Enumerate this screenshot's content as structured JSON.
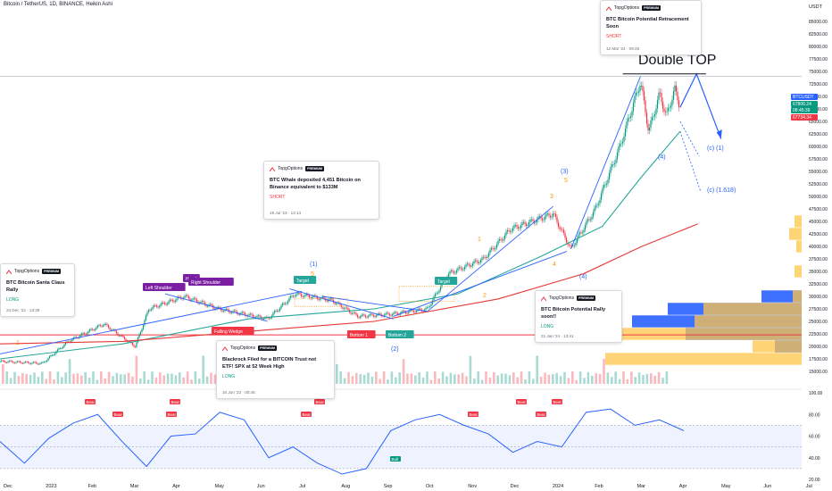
{
  "header": {
    "symbol_title": "Bitcoin / TetherUS, 1D, BINANCE, Heikin Ashi"
  },
  "price_axis": {
    "currency": "USDT",
    "labels": [
      "85000.00",
      "82500.00",
      "80000.00",
      "77500.00",
      "75000.00",
      "72500.00",
      "70000.00",
      "67500.00",
      "65000.00",
      "62500.00",
      "60000.00",
      "57500.00",
      "55000.00",
      "52500.00",
      "50000.00",
      "47500.00",
      "45000.00",
      "42500.00",
      "40000.00",
      "37500.00",
      "35000.00",
      "32500.00",
      "30000.00",
      "27500.00",
      "25000.00",
      "22500.00",
      "20000.00",
      "17500.00",
      "15000.00"
    ],
    "last_price_tags": [
      {
        "text": "BTCUSDT",
        "color": "#2962ff"
      },
      {
        "text": "67806.24",
        "color": "#089981"
      },
      {
        "text": "08:45:39",
        "color": "#089981"
      },
      {
        "text": "67734.34",
        "color": "#f23645"
      }
    ]
  },
  "rsi_axis": {
    "labels": [
      "100.00",
      "80.00",
      "60.00",
      "40.00",
      "20.00"
    ]
  },
  "time_axis": {
    "labels": [
      "Dec",
      "2023",
      "Feb",
      "Mar",
      "Apr",
      "May",
      "Jun",
      "Jul",
      "Aug",
      "Sep",
      "Oct",
      "Nov",
      "Dec",
      "2024",
      "Feb",
      "Mar",
      "Apr",
      "May",
      "Jun",
      "Jul"
    ]
  },
  "chart_data": {
    "type": "candlestick",
    "candle_type": "Heikin Ashi",
    "interval": "1D",
    "exchange": "BINANCE",
    "x_range": [
      "Dec 2022",
      "Jul 2024"
    ],
    "ylim": [
      12500,
      87500
    ],
    "close_path": [
      {
        "date": "2022-12-01",
        "close": 17000
      },
      {
        "date": "2023-01-01",
        "close": 16600
      },
      {
        "date": "2023-01-20",
        "close": 21000
      },
      {
        "date": "2023-02-15",
        "close": 24500
      },
      {
        "date": "2023-03-10",
        "close": 20000
      },
      {
        "date": "2023-03-20",
        "close": 27500
      },
      {
        "date": "2023-04-15",
        "close": 30000
      },
      {
        "date": "2023-05-10",
        "close": 27500
      },
      {
        "date": "2023-06-15",
        "close": 25500
      },
      {
        "date": "2023-07-05",
        "close": 30500
      },
      {
        "date": "2023-08-01",
        "close": 29200
      },
      {
        "date": "2023-08-20",
        "close": 26000
      },
      {
        "date": "2023-09-15",
        "close": 26500
      },
      {
        "date": "2023-10-10",
        "close": 27500
      },
      {
        "date": "2023-10-25",
        "close": 34500
      },
      {
        "date": "2023-11-20",
        "close": 37500
      },
      {
        "date": "2023-12-10",
        "close": 43500
      },
      {
        "date": "2024-01-10",
        "close": 46500
      },
      {
        "date": "2024-01-23",
        "close": 39500
      },
      {
        "date": "2024-02-10",
        "close": 47500
      },
      {
        "date": "2024-02-28",
        "close": 60000
      },
      {
        "date": "2024-03-14",
        "close": 73000
      },
      {
        "date": "2024-03-20",
        "close": 63000
      },
      {
        "date": "2024-03-28",
        "close": 70500
      },
      {
        "date": "2024-04-02",
        "close": 66000
      },
      {
        "date": "2024-04-08",
        "close": 71500
      },
      {
        "date": "2024-04-12",
        "close": 67800
      }
    ],
    "projection": [
      {
        "date": "2024-04-12",
        "close": 67800
      },
      {
        "date": "2024-04-24",
        "close": 74500
      },
      {
        "date": "2024-05-12",
        "close": 61500
      }
    ],
    "annotations": {
      "double_top": "Double TOP",
      "labels": [
        "(1)",
        "(2)",
        "(3)",
        "(4)",
        "(4)",
        "(c) (1)",
        "(c) (1.618)",
        "1",
        "2",
        "3",
        "4",
        "5",
        "3",
        "5",
        "1"
      ],
      "pattern_tags": [
        {
          "text": "Left Shoulder",
          "color": "#7b1fa2"
        },
        {
          "text": "Head",
          "color": "#7b1fa2"
        },
        {
          "text": "Right Shoulder",
          "color": "#7b1fa2"
        },
        {
          "text": "Target",
          "color": "#26a69a"
        },
        {
          "text": "Target",
          "color": "#26a69a"
        },
        {
          "text": "Bottom 1",
          "color": "#f23645"
        },
        {
          "text": "Bottom 2",
          "color": "#26a69a"
        },
        {
          "text": "Falling Wedge",
          "color": "#f23645"
        }
      ],
      "rsi_tags": [
        "Bear",
        "Bear",
        "Bear",
        "Bear",
        "Bear",
        "Bear",
        "Bear",
        "Bear",
        "Bear",
        "Bear",
        "Bull"
      ]
    },
    "rsi": {
      "range": [
        20,
        100
      ],
      "values": [
        55,
        35,
        58,
        72,
        80,
        55,
        32,
        60,
        62,
        82,
        75,
        40,
        50,
        35,
        25,
        30,
        65,
        75,
        80,
        70,
        62,
        45,
        55,
        50,
        82,
        85,
        70,
        75,
        65
      ]
    }
  },
  "ideas": [
    {
      "brand": "TopgOptions",
      "badge": "PREMIUM",
      "title": "BTC Bitcoin Potential Retracement Soon",
      "direction": "SHORT",
      "date": "12 Mar '24 · 09:48",
      "dir_color": "#f23645"
    },
    {
      "brand": "TopgOptions",
      "badge": "PREMIUM",
      "title": "BTC Whale deposited 4,451 Bitcoin on Binance equivalent to $133M",
      "direction": "SHORT",
      "date": "19 Jul '23 · 13:14",
      "dir_color": "#f23645"
    },
    {
      "brand": "TopgOptions",
      "badge": "PREMIUM",
      "title": "BTC Bitcoin Santa Claus Rally",
      "direction": "LONG",
      "date": "24 Dec '22 · 13:39",
      "dir_color": "#089981"
    },
    {
      "brand": "TopgOptions",
      "badge": "PREMIUM",
      "title": "Blackrock Filed for a BITCOIN Trust not ETF! SPX at 52 Week High",
      "direction": "LONG",
      "date": "16 Jun '23 · 00:46",
      "dir_color": "#089981"
    },
    {
      "brand": "TopgOptions",
      "badge": "PREMIUM",
      "title": "BTC Bitcoin Potential Rally soon!!",
      "direction": "LONG",
      "date": "21 Jan '24 · 13:41",
      "dir_color": "#089981"
    }
  ],
  "colors": {
    "up": "#089981",
    "down": "#f23645",
    "ma_green": "#26a69a",
    "ma_red": "#e53935",
    "trend": "#2962ff",
    "rsi_line": "#2962ff",
    "vp_orange": "#ffc64a",
    "vp_blue": "#2962ff"
  }
}
